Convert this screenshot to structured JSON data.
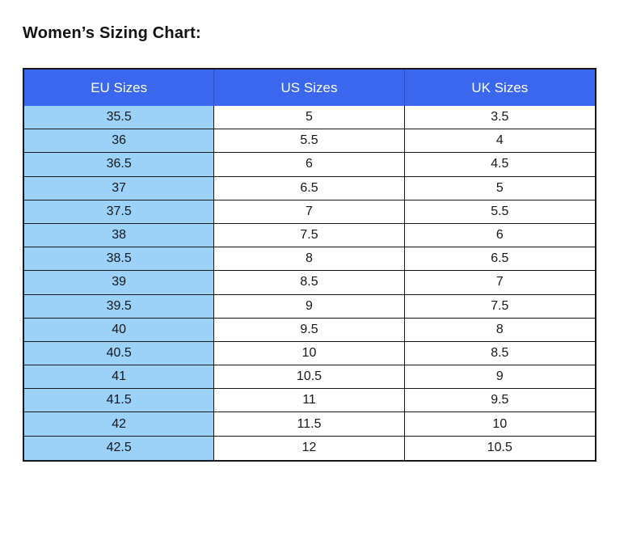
{
  "title": "Women’s Sizing Chart:",
  "table": {
    "headers": [
      "EU Sizes",
      "US Sizes",
      "UK Sizes"
    ],
    "rows": [
      [
        "35.5",
        "5",
        "3.5"
      ],
      [
        "36",
        "5.5",
        "4"
      ],
      [
        "36.5",
        "6",
        "4.5"
      ],
      [
        "37",
        "6.5",
        "5"
      ],
      [
        "37.5",
        "7",
        "5.5"
      ],
      [
        "38",
        "7.5",
        "6"
      ],
      [
        "38.5",
        "8",
        "6.5"
      ],
      [
        "39",
        "8.5",
        "7"
      ],
      [
        "39.5",
        "9",
        "7.5"
      ],
      [
        "40",
        "9.5",
        "8"
      ],
      [
        "40.5",
        "10",
        "8.5"
      ],
      [
        "41",
        "10.5",
        "9"
      ],
      [
        "41.5",
        "11",
        "9.5"
      ],
      [
        "42",
        "11.5",
        "10"
      ],
      [
        "42.5",
        "12",
        "10.5"
      ]
    ],
    "column_names": [
      "eu-cell",
      "us-cell",
      "uk-cell"
    ]
  },
  "colors": {
    "header_bg": "#3b66ee",
    "header_divider": "#2c50c8",
    "eu_col_bg": "#9cd1f8",
    "border": "#17181d",
    "header_text": "#ffffff",
    "cell_text": "#15171c"
  }
}
